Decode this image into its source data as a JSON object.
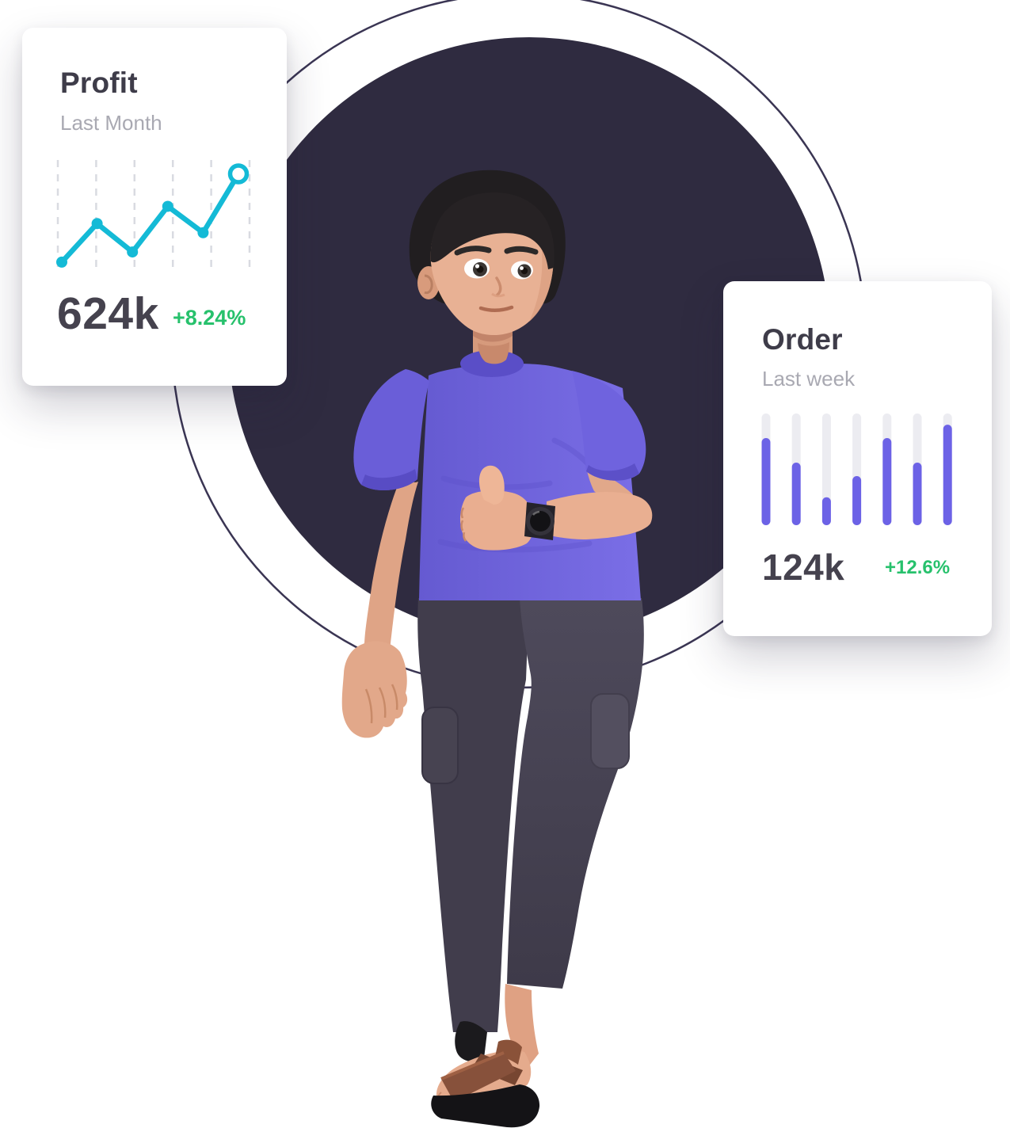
{
  "page": {
    "background_color": "#FFFFFF",
    "decor": {
      "filled_circle_color": "#2F2B40",
      "ring_stroke_color": "#3A3553"
    }
  },
  "profit_card": {
    "title": "Profit",
    "subtitle": "Last Month",
    "value": "624k",
    "delta": "+8.24%",
    "title_color": "#3E3C49",
    "subtitle_color": "#A9A9B2",
    "value_color": "#45424E",
    "delta_color": "#27C16C",
    "chart_data": {
      "type": "line",
      "title": "Profit — Last Month",
      "x": [
        1,
        2,
        3,
        4,
        5,
        6
      ],
      "series": [
        {
          "name": "Profit",
          "values": [
            4,
            42,
            14,
            59,
            33,
            91
          ]
        }
      ],
      "ylim": [
        0,
        100
      ],
      "grid": "vertical-dashed-lines",
      "gridline_color": "#D9DBE1",
      "line_color": "#14BAD6",
      "marker": "filled-dot",
      "last_marker": "open-ring",
      "legend": "none",
      "axis_labels": "none"
    }
  },
  "order_card": {
    "title": "Order",
    "subtitle": "Last week",
    "value": "124k",
    "delta": "+12.6%",
    "title_color": "#3E3C49",
    "subtitle_color": "#A9A9B2",
    "value_color": "#45424E",
    "delta_color": "#27C16C",
    "chart_data": {
      "type": "bar",
      "title": "Order — Last week",
      "categories": [
        "1",
        "2",
        "3",
        "4",
        "5",
        "6",
        "7"
      ],
      "values": [
        78,
        56,
        25,
        44,
        78,
        56,
        90
      ],
      "ylim": [
        0,
        100
      ],
      "bar_color": "#6C62E6",
      "track_color": "#ECECF1",
      "bar_style": "rounded-pill-on-track",
      "legend": "none",
      "axis_labels": "none"
    }
  },
  "character": {
    "description": "3D cartoon man with black hair giving a thumbs-up, wearing a purple t-shirt, wristwatch, dark jogger pants and brown strap sandals, standing in front of a dark circle"
  }
}
